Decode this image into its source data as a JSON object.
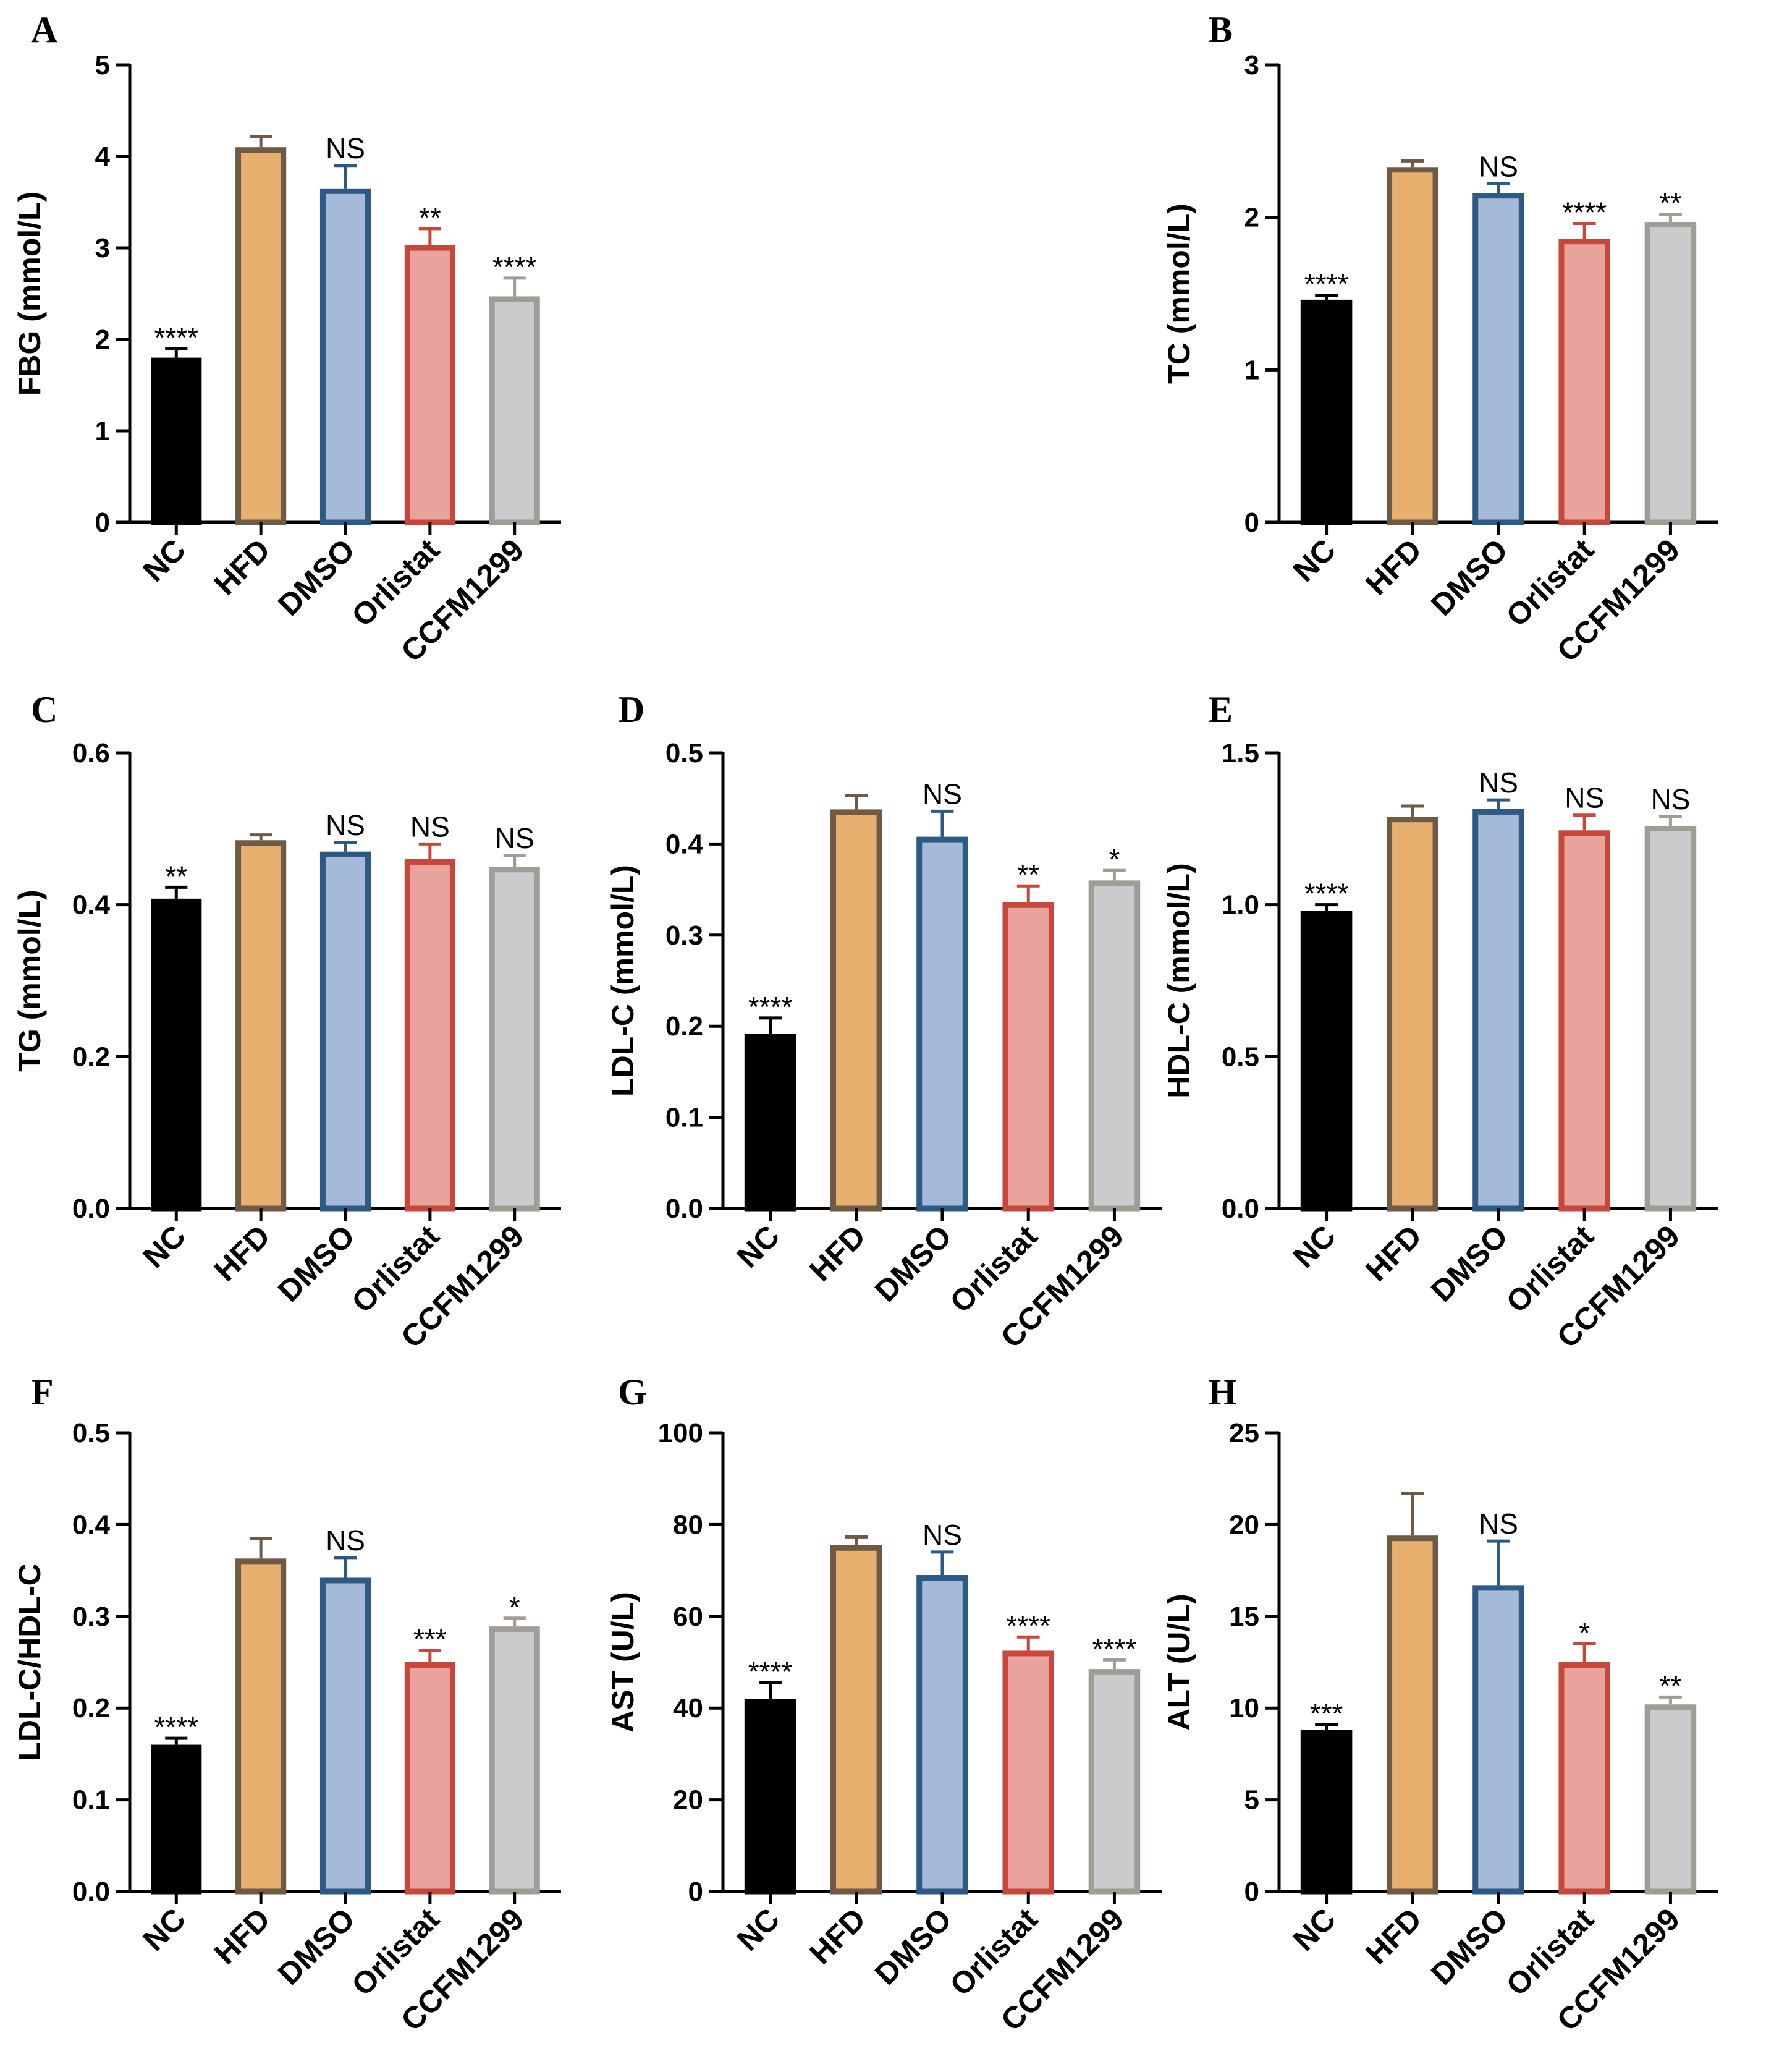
{
  "groups": [
    {
      "name": "NC",
      "fill": "#000000",
      "stroke": "#000000"
    },
    {
      "name": "HFD",
      "fill": "#E8B06E",
      "stroke": "#6E5A45"
    },
    {
      "name": "DMSO",
      "fill": "#A4BAD8",
      "stroke": "#2C5A84"
    },
    {
      "name": "Orlistat",
      "fill": "#E8A39C",
      "stroke": "#C7473D"
    },
    {
      "name": "CCFM1299",
      "fill": "#C9CBCD",
      "stroke": "#A09C96"
    }
  ],
  "chart_data": [
    {
      "type": "bar",
      "panel": "A",
      "ylabel": "FBG (mmol/L)",
      "ylim": [
        0,
        5
      ],
      "ticks": [
        "0",
        "1",
        "2",
        "3",
        "4",
        "5"
      ],
      "categories": [
        "NC",
        "HFD",
        "DMSO",
        "Orlistat",
        "CCFM1299"
      ],
      "values": [
        1.8,
        4.1,
        3.65,
        3.03,
        2.47
      ],
      "errors": [
        0.1,
        0.12,
        0.25,
        0.18,
        0.2
      ],
      "significance": [
        "****",
        "",
        "NS",
        "**",
        "****"
      ]
    },
    {
      "type": "bar",
      "panel": "B",
      "ylabel": "TC (mmol/L)",
      "ylim": [
        0,
        3
      ],
      "ticks": [
        "0",
        "1",
        "2",
        "3"
      ],
      "categories": [
        "NC",
        "HFD",
        "DMSO",
        "Orlistat",
        "CCFM1299"
      ],
      "values": [
        1.46,
        2.33,
        2.16,
        1.86,
        1.97
      ],
      "errors": [
        0.03,
        0.04,
        0.06,
        0.1,
        0.05
      ],
      "significance": [
        "****",
        "",
        "NS",
        "****",
        "**"
      ]
    },
    {
      "type": "bar",
      "panel": "C",
      "ylabel": "TG (mmol/L)",
      "ylim": [
        0,
        0.6
      ],
      "ticks": [
        "0.0",
        "0.2",
        "0.4",
        "0.6"
      ],
      "categories": [
        "NC",
        "HFD",
        "DMSO",
        "Orlistat",
        "CCFM1299"
      ],
      "values": [
        0.408,
        0.485,
        0.47,
        0.46,
        0.45
      ],
      "errors": [
        0.015,
        0.007,
        0.012,
        0.02,
        0.015
      ],
      "significance": [
        "**",
        "",
        "NS",
        "NS",
        "NS"
      ]
    },
    {
      "type": "bar",
      "panel": "D",
      "ylabel": "LDL-C (mmol/L)",
      "ylim": [
        0,
        0.5
      ],
      "ticks": [
        "0.0",
        "0.1",
        "0.2",
        "0.3",
        "0.4",
        "0.5"
      ],
      "categories": [
        "NC",
        "HFD",
        "DMSO",
        "Orlistat",
        "CCFM1299"
      ],
      "values": [
        0.192,
        0.438,
        0.408,
        0.336,
        0.36
      ],
      "errors": [
        0.017,
        0.015,
        0.028,
        0.018,
        0.011
      ],
      "significance": [
        "****",
        "",
        "NS",
        "**",
        "*"
      ]
    },
    {
      "type": "bar",
      "panel": "E",
      "ylabel": "HDL-C (mmol/L)",
      "ylim": [
        0,
        1.5
      ],
      "ticks": [
        "0.0",
        "0.5",
        "1.0",
        "1.5"
      ],
      "categories": [
        "NC",
        "HFD",
        "DMSO",
        "Orlistat",
        "CCFM1299"
      ],
      "values": [
        0.98,
        1.29,
        1.315,
        1.245,
        1.26
      ],
      "errors": [
        0.02,
        0.035,
        0.03,
        0.05,
        0.03
      ],
      "significance": [
        "****",
        "",
        "NS",
        "NS",
        "NS"
      ]
    },
    {
      "type": "bar",
      "panel": "F",
      "ylabel": "LDL-C/HDL-C",
      "ylim": [
        0,
        0.5
      ],
      "ticks": [
        "0.0",
        "0.1",
        "0.2",
        "0.3",
        "0.4",
        "0.5"
      ],
      "categories": [
        "NC",
        "HFD",
        "DMSO",
        "Orlistat",
        "CCFM1299"
      ],
      "values": [
        0.16,
        0.363,
        0.342,
        0.25,
        0.289
      ],
      "errors": [
        0.007,
        0.022,
        0.022,
        0.013,
        0.009
      ],
      "significance": [
        "****",
        "",
        "NS",
        "***",
        "*"
      ]
    },
    {
      "type": "bar",
      "panel": "G",
      "ylabel": "AST (U/L)",
      "ylim": [
        0,
        100
      ],
      "ticks": [
        "0",
        "20",
        "40",
        "60",
        "80",
        "100"
      ],
      "categories": [
        "NC",
        "HFD",
        "DMSO",
        "Orlistat",
        "CCFM1299"
      ],
      "values": [
        42,
        75.5,
        69,
        52.5,
        48.5
      ],
      "errors": [
        3.5,
        1.8,
        5,
        3,
        2
      ],
      "significance": [
        "****",
        "",
        "NS",
        "****",
        "****"
      ]
    },
    {
      "type": "bar",
      "panel": "H",
      "ylabel": "ALT (U/L)",
      "ylim": [
        0,
        25
      ],
      "ticks": [
        "0",
        "5",
        "10",
        "15",
        "20",
        "25"
      ],
      "categories": [
        "NC",
        "HFD",
        "DMSO",
        "Orlistat",
        "CCFM1299"
      ],
      "values": [
        8.8,
        19.4,
        16.7,
        12.5,
        10.2
      ],
      "errors": [
        0.3,
        2.3,
        2.4,
        1.0,
        0.4
      ],
      "significance": [
        "***",
        "",
        "NS",
        "*",
        "**"
      ]
    }
  ]
}
